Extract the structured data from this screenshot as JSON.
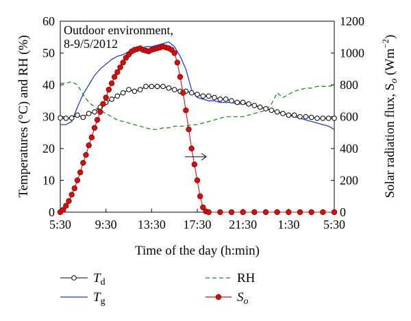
{
  "chart_data": {
    "type": "line",
    "annotation": {
      "line1": "Outdoor environment,",
      "line2": "8-9/5/2012"
    },
    "xlabel": "Time of the day (h:min)",
    "ylabel_left": "Temperatures (°C) and RH (%)",
    "ylabel_right": "Solar radiation flux, S",
    "ylabel_right_sub": "o",
    "ylabel_right_unit_open": " (Wm",
    "ylabel_right_unit_exp": "−2",
    "ylabel_right_unit_close": ")",
    "x_ticks": [
      "5:30",
      "9:30",
      "13:30",
      "17:30",
      "21:30",
      "1:30",
      "5:30"
    ],
    "xlim": [
      0,
      24
    ],
    "x_unit": "hours since 5:30",
    "ylim_left": [
      0,
      60
    ],
    "yticks_left": [
      "0",
      "10",
      "20",
      "30",
      "40",
      "50",
      "60"
    ],
    "ylim_right": [
      0,
      1200
    ],
    "yticks_right": [
      "0",
      "200",
      "400",
      "600",
      "800",
      "1000",
      "1200"
    ],
    "series": [
      {
        "name": "T",
        "sub": "d",
        "axis": "left",
        "color": "#000000",
        "marker": "open-circle",
        "points": [
          [
            0,
            29.6
          ],
          [
            0.5,
            29.5
          ],
          [
            1,
            29.6
          ],
          [
            1.5,
            30.5
          ],
          [
            2,
            29.8
          ],
          [
            2.5,
            31
          ],
          [
            3,
            31.5
          ],
          [
            3.5,
            33
          ],
          [
            4,
            34.5
          ],
          [
            4.5,
            35.5
          ],
          [
            5,
            36.5
          ],
          [
            5.5,
            37.5
          ],
          [
            6,
            38.5
          ],
          [
            6.5,
            38
          ],
          [
            7,
            38.5
          ],
          [
            7.5,
            39.5
          ],
          [
            8,
            39.5
          ],
          [
            8.5,
            39.5
          ],
          [
            9,
            39.5
          ],
          [
            9.5,
            39
          ],
          [
            10,
            38.5
          ],
          [
            10.5,
            38
          ],
          [
            11,
            38
          ],
          [
            11.5,
            37.5
          ],
          [
            12,
            37
          ],
          [
            12.5,
            36.5
          ],
          [
            13,
            36.5
          ],
          [
            13.5,
            36
          ],
          [
            14,
            35.5
          ],
          [
            14.5,
            35.5
          ],
          [
            15,
            35
          ],
          [
            15.5,
            34.5
          ],
          [
            16,
            34.5
          ],
          [
            16.5,
            34
          ],
          [
            17,
            33.5
          ],
          [
            17.5,
            33
          ],
          [
            18,
            32.5
          ],
          [
            18.5,
            32
          ],
          [
            19,
            31.5
          ],
          [
            19.5,
            31
          ],
          [
            20,
            30.5
          ],
          [
            20.5,
            30.5
          ],
          [
            21,
            30
          ],
          [
            21.5,
            30
          ],
          [
            22,
            29.8
          ],
          [
            22.5,
            29.5
          ],
          [
            23,
            29.5
          ],
          [
            23.5,
            29.5
          ],
          [
            24,
            29.5
          ]
        ]
      },
      {
        "name": "T",
        "sub": "g",
        "axis": "left",
        "color": "#1f3fd6",
        "marker": "none",
        "points": [
          [
            0,
            27.5
          ],
          [
            0.5,
            27.5
          ],
          [
            1,
            28.5
          ],
          [
            1.5,
            33
          ],
          [
            2,
            37
          ],
          [
            2.5,
            40
          ],
          [
            3,
            43
          ],
          [
            3.5,
            45
          ],
          [
            4,
            46.5
          ],
          [
            4.5,
            48
          ],
          [
            5,
            49
          ],
          [
            5.5,
            49.5
          ],
          [
            6,
            50.5
          ],
          [
            6.5,
            51.5
          ],
          [
            7,
            51.5
          ],
          [
            7.5,
            52
          ],
          [
            8,
            52
          ],
          [
            8.5,
            52.5
          ],
          [
            9,
            53
          ],
          [
            9.5,
            53.5
          ],
          [
            10,
            52
          ],
          [
            10.5,
            49
          ],
          [
            11,
            45
          ],
          [
            11.5,
            38.5
          ],
          [
            12,
            36
          ],
          [
            12.5,
            35.5
          ],
          [
            13,
            35
          ],
          [
            13.5,
            35
          ],
          [
            14,
            34.5
          ],
          [
            14.5,
            34.5
          ],
          [
            15,
            34.5
          ],
          [
            15.5,
            34
          ],
          [
            16,
            34
          ],
          [
            16.5,
            34
          ],
          [
            17,
            33.5
          ],
          [
            17.5,
            33
          ],
          [
            18,
            32.5
          ],
          [
            18.5,
            32
          ],
          [
            19,
            31.5
          ],
          [
            19.5,
            31
          ],
          [
            20,
            30.5
          ],
          [
            20.5,
            30
          ],
          [
            21,
            29.5
          ],
          [
            21.5,
            29
          ],
          [
            22,
            28.5
          ],
          [
            22.5,
            28
          ],
          [
            23,
            27.5
          ],
          [
            23.5,
            27
          ],
          [
            24,
            26
          ]
        ]
      },
      {
        "name": "RH",
        "axis": "left",
        "color": "#1e8a1e",
        "marker": "none",
        "dash": true,
        "points": [
          [
            0,
            40.5
          ],
          [
            0.5,
            40.5
          ],
          [
            1,
            41
          ],
          [
            1.5,
            40
          ],
          [
            2,
            37
          ],
          [
            2.5,
            34.5
          ],
          [
            3,
            33
          ],
          [
            3.5,
            32
          ],
          [
            4,
            31
          ],
          [
            4.5,
            30
          ],
          [
            5,
            29
          ],
          [
            5.5,
            28.5
          ],
          [
            6,
            28
          ],
          [
            6.5,
            27.5
          ],
          [
            7,
            27
          ],
          [
            7.5,
            26.5
          ],
          [
            8,
            26
          ],
          [
            8.5,
            26
          ],
          [
            9,
            26.5
          ],
          [
            9.5,
            26.5
          ],
          [
            10,
            27
          ],
          [
            10.5,
            27
          ],
          [
            11,
            27
          ],
          [
            11.5,
            27.5
          ],
          [
            12,
            27.5
          ],
          [
            12.5,
            28
          ],
          [
            13,
            28.5
          ],
          [
            13.5,
            29
          ],
          [
            14,
            29.5
          ],
          [
            14.5,
            30
          ],
          [
            15,
            30
          ],
          [
            15.5,
            30
          ],
          [
            16,
            30
          ],
          [
            16.5,
            30.5
          ],
          [
            17,
            31
          ],
          [
            17.5,
            31.5
          ],
          [
            18,
            32
          ],
          [
            18.5,
            34
          ],
          [
            19,
            37.5
          ],
          [
            19.5,
            36
          ],
          [
            20,
            37
          ],
          [
            20.5,
            38
          ],
          [
            21,
            38.5
          ],
          [
            21.5,
            39
          ],
          [
            22,
            39
          ],
          [
            22.5,
            39.5
          ],
          [
            23,
            39.5
          ],
          [
            23.5,
            39.5
          ],
          [
            24,
            40
          ]
        ]
      },
      {
        "name": "S",
        "sub": "o",
        "axis": "right",
        "color": "#cc1111",
        "marker": "filled-circle",
        "points": [
          [
            0,
            0
          ],
          [
            0.25,
            15
          ],
          [
            0.5,
            40
          ],
          [
            0.75,
            70
          ],
          [
            1,
            110
          ],
          [
            1.25,
            150
          ],
          [
            1.5,
            200
          ],
          [
            1.75,
            250
          ],
          [
            2,
            310
          ],
          [
            2.25,
            360
          ],
          [
            2.5,
            420
          ],
          [
            2.75,
            470
          ],
          [
            3,
            530
          ],
          [
            3.25,
            580
          ],
          [
            3.5,
            630
          ],
          [
            3.75,
            680
          ],
          [
            4,
            720
          ],
          [
            4.25,
            770
          ],
          [
            4.5,
            810
          ],
          [
            4.75,
            850
          ],
          [
            5,
            880
          ],
          [
            5.25,
            910
          ],
          [
            5.5,
            940
          ],
          [
            5.75,
            970
          ],
          [
            6,
            990
          ],
          [
            6.25,
            1010
          ],
          [
            6.5,
            1020
          ],
          [
            6.75,
            1025
          ],
          [
            7,
            1030
          ],
          [
            7.25,
            1020
          ],
          [
            7.5,
            1015
          ],
          [
            7.75,
            1010
          ],
          [
            8,
            1020
          ],
          [
            8.25,
            1025
          ],
          [
            8.5,
            1030
          ],
          [
            8.75,
            1035
          ],
          [
            9,
            1040
          ],
          [
            9.25,
            1035
          ],
          [
            9.5,
            1030
          ],
          [
            9.75,
            1020
          ],
          [
            10,
            1000
          ],
          [
            10.25,
            940
          ],
          [
            10.5,
            850
          ],
          [
            10.75,
            750
          ],
          [
            11,
            640
          ],
          [
            11.25,
            520
          ],
          [
            11.5,
            400
          ],
          [
            11.75,
            300
          ],
          [
            12,
            200
          ],
          [
            12.25,
            100
          ],
          [
            12.5,
            30
          ],
          [
            12.75,
            5
          ],
          [
            13,
            0
          ],
          [
            14,
            0
          ],
          [
            15,
            0
          ],
          [
            16,
            0
          ],
          [
            17,
            0
          ],
          [
            18,
            0
          ],
          [
            19,
            0
          ],
          [
            20,
            0
          ],
          [
            21,
            0
          ],
          [
            22,
            0
          ],
          [
            23,
            0
          ],
          [
            24,
            0
          ]
        ]
      }
    ],
    "legend": [
      {
        "name": "T",
        "sub": "d"
      },
      {
        "name": "RH",
        "sub": ""
      },
      {
        "name": "T",
        "sub": "g"
      },
      {
        "name": "S",
        "sub": "o"
      }
    ],
    "grid": false,
    "legend_position": "bottom"
  }
}
